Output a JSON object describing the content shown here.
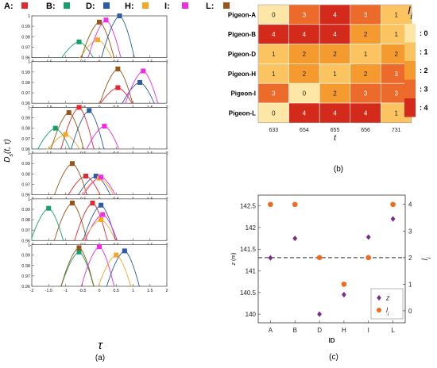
{
  "chart_data": [
    {
      "type": "line",
      "panel_label": "(a)",
      "legend": [
        {
          "id": "A",
          "label": "A:",
          "color": "#e8262d"
        },
        {
          "id": "B",
          "label": "B:",
          "color": "#14a06b"
        },
        {
          "id": "D",
          "label": "D:",
          "color": "#2c5ba8"
        },
        {
          "id": "H",
          "label": "H:",
          "color": "#f6a623"
        },
        {
          "id": "I",
          "label": "I:",
          "color": "#f22ae4"
        },
        {
          "id": "L",
          "label": "L:",
          "color": "#9a5418"
        }
      ],
      "ylabel": "D_s(t, τ)",
      "xlabel": "τ",
      "xlim": [
        -2,
        2
      ],
      "xticks": [
        "-2",
        "-1.5",
        "-1",
        "-0.5",
        "0",
        "0.5",
        "1",
        "1.5",
        "2"
      ],
      "ylim": [
        0.96,
        1.0
      ],
      "yticks": [
        "0.96",
        "0.97",
        "0.98",
        "0.99",
        "1"
      ],
      "subplots": [
        {
          "peaks": [
            {
              "id": "B",
              "tau": -0.6,
              "D": 0.975
            },
            {
              "id": "H",
              "tau": -0.05,
              "D": 0.977
            },
            {
              "id": "L",
              "tau": 0.0,
              "D": 0.994
            },
            {
              "id": "I",
              "tau": 0.2,
              "D": 0.996
            },
            {
              "id": "D",
              "tau": 0.6,
              "D": 1.0
            }
          ]
        },
        {
          "peaks": [
            {
              "id": "A",
              "tau": 0.55,
              "D": 0.975
            },
            {
              "id": "L",
              "tau": 0.55,
              "D": 0.993
            },
            {
              "id": "D",
              "tau": 1.2,
              "D": 0.98
            },
            {
              "id": "I",
              "tau": 1.3,
              "D": 0.991
            }
          ]
        },
        {
          "peaks": [
            {
              "id": "B",
              "tau": -1.3,
              "D": 0.98
            },
            {
              "id": "H",
              "tau": -1.0,
              "D": 0.974
            },
            {
              "id": "L",
              "tau": -0.9,
              "D": 0.995
            },
            {
              "id": "A",
              "tau": -0.6,
              "D": 1.0
            },
            {
              "id": "D",
              "tau": -0.3,
              "D": 0.997
            },
            {
              "id": "I",
              "tau": 0.15,
              "D": 0.982
            }
          ]
        },
        {
          "peaks": [
            {
              "id": "L",
              "tau": -0.8,
              "D": 0.99
            },
            {
              "id": "A",
              "tau": -0.4,
              "D": 0.978
            },
            {
              "id": "D",
              "tau": -0.1,
              "D": 0.978
            },
            {
              "id": "H",
              "tau": 0.0,
              "D": 0.976
            },
            {
              "id": "I",
              "tau": 0.05,
              "D": 0.977
            }
          ]
        },
        {
          "peaks": [
            {
              "id": "B",
              "tau": -1.5,
              "D": 0.991
            },
            {
              "id": "L",
              "tau": -0.8,
              "D": 0.996
            },
            {
              "id": "A",
              "tau": -0.2,
              "D": 0.996
            },
            {
              "id": "D",
              "tau": 0.05,
              "D": 0.994
            },
            {
              "id": "I",
              "tau": 0.1,
              "D": 0.985
            },
            {
              "id": "H",
              "tau": 0.05,
              "D": 0.98
            }
          ]
        },
        {
          "peaks": [
            {
              "id": "B",
              "tau": -0.6,
              "D": 0.993
            },
            {
              "id": "L",
              "tau": -0.6,
              "D": 0.997
            },
            {
              "id": "I",
              "tau": 0.0,
              "D": 0.998
            },
            {
              "id": "H",
              "tau": 0.5,
              "D": 0.99
            },
            {
              "id": "D",
              "tau": 0.75,
              "D": 0.994
            }
          ]
        }
      ]
    },
    {
      "type": "heatmap",
      "panel_label": "(b)",
      "rows": [
        "Pigeon-A",
        "Pigeon-B",
        "Pigeon-D",
        "Pigeon-H",
        "Pigeon-I",
        "Pigeon-L"
      ],
      "columns": [
        "633",
        "654",
        "655",
        "656",
        "731"
      ],
      "xlabel": "t",
      "values": [
        [
          0,
          3,
          4,
          3,
          1
        ],
        [
          4,
          4,
          4,
          2,
          1
        ],
        [
          1,
          2,
          2,
          1,
          2
        ],
        [
          1,
          2,
          1,
          2,
          3
        ],
        [
          3,
          0,
          2,
          3,
          3
        ],
        [
          0,
          4,
          4,
          4,
          1
        ]
      ],
      "colorbar_title": "l_i",
      "colorbar": [
        {
          "value": 0,
          "label": ": 0",
          "color": "#fde6a6"
        },
        {
          "value": 1,
          "label": ": 1",
          "color": "#fbc460"
        },
        {
          "value": 2,
          "label": ": 2",
          "color": "#f59a2e"
        },
        {
          "value": 3,
          "label": ": 3",
          "color": "#ec6a2a"
        },
        {
          "value": 4,
          "label": ": 4",
          "color": "#d42a1c"
        }
      ]
    },
    {
      "type": "scatter",
      "panel_label": "(c)",
      "categories": [
        "A",
        "B",
        "D",
        "H",
        "I",
        "L"
      ],
      "xlabel": "ID",
      "ylabel_left": "z (m)",
      "ylabel_right": "l_i",
      "ylim_left": [
        139.8,
        142.75
      ],
      "yticks_left": [
        "140",
        "140.5",
        "141",
        "141.5",
        "142",
        "142.5"
      ],
      "ylim_right": [
        -0.45,
        4.35
      ],
      "yticks_right": [
        "0",
        "1",
        "2",
        "3",
        "4"
      ],
      "dashed_line_right": 2,
      "series": [
        {
          "name": "z",
          "marker": "diamond",
          "color": "#7a2b8c",
          "values": [
            141.3,
            141.75,
            140.0,
            140.45,
            141.78,
            142.2
          ]
        },
        {
          "name": "l_i",
          "marker": "circle",
          "color": "#f06a1e",
          "values": [
            4,
            4,
            2,
            1,
            2,
            4
          ]
        }
      ]
    }
  ]
}
